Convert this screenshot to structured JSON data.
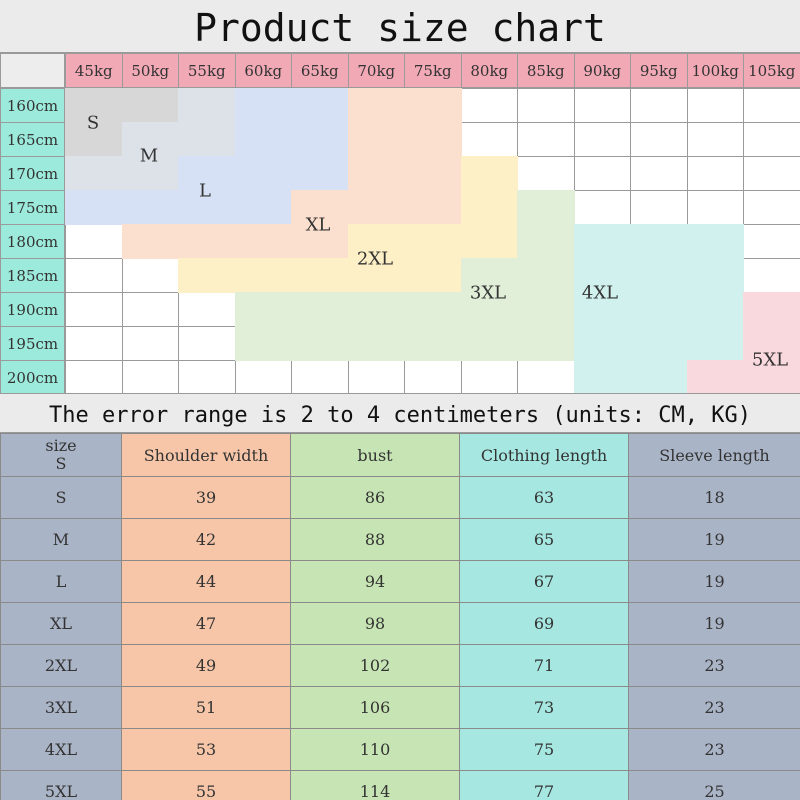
{
  "title": "Product size chart",
  "note": "The error range is 2 to 4 centimeters (units: CM, KG)",
  "weights": [
    "45kg",
    "50kg",
    "55kg",
    "60kg",
    "65kg",
    "70kg",
    "75kg",
    "80kg",
    "85kg",
    "90kg",
    "95kg",
    "100kg",
    "105kg"
  ],
  "heights": [
    "160cm",
    "165cm",
    "170cm",
    "175cm",
    "180cm",
    "185cm",
    "190cm",
    "195cm",
    "200cm"
  ],
  "size_zones": [
    {
      "size": "S",
      "color": "#d7d7d7"
    },
    {
      "size": "M",
      "color": "#dde2e9"
    },
    {
      "size": "L",
      "color": "#d6e1f5"
    },
    {
      "size": "XL",
      "color": "#fce0cf"
    },
    {
      "size": "2XL",
      "color": "#fdf0c6"
    },
    {
      "size": "3XL",
      "color": "#e1efd8"
    },
    {
      "size": "4XL",
      "color": "#d1f1ee"
    },
    {
      "size": "5XL",
      "color": "#f9d9de"
    }
  ],
  "table": {
    "headers": [
      "size\nS",
      "Shoulder width",
      "bust",
      "Clothing length",
      "Sleeve length"
    ],
    "rows": [
      [
        "S",
        "39",
        "86",
        "63",
        "18"
      ],
      [
        "M",
        "42",
        "88",
        "65",
        "19"
      ],
      [
        "L",
        "44",
        "94",
        "67",
        "19"
      ],
      [
        "XL",
        "47",
        "98",
        "69",
        "19"
      ],
      [
        "2XL",
        "49",
        "102",
        "71",
        "23"
      ],
      [
        "3XL",
        "51",
        "106",
        "73",
        "23"
      ],
      [
        "4XL",
        "53",
        "110",
        "75",
        "23"
      ],
      [
        "5XL",
        "55",
        "114",
        "77",
        "25"
      ]
    ]
  }
}
